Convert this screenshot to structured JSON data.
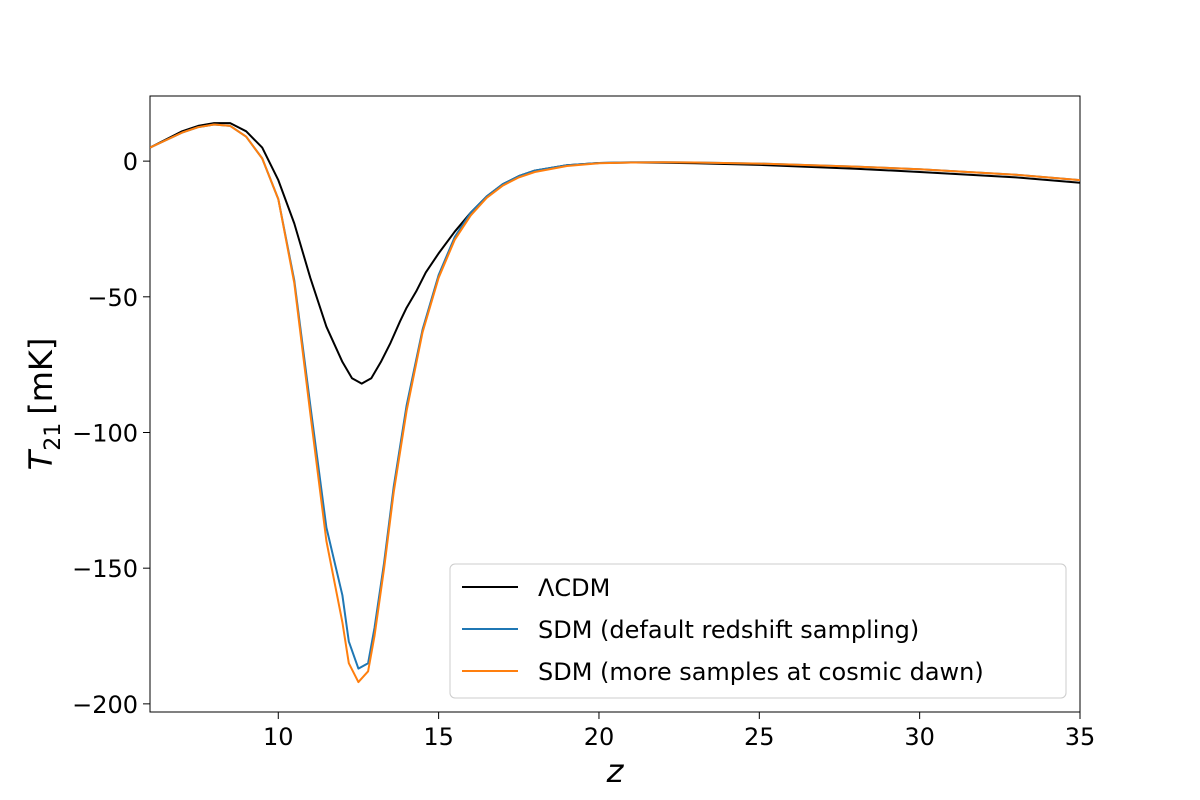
{
  "chart_data": {
    "type": "line",
    "xlabel": "z",
    "ylabel_main": "T",
    "ylabel_sub": "21",
    "ylabel_unit": "[mK]",
    "xlim": [
      6,
      35
    ],
    "ylim": [
      -203,
      24
    ],
    "x_ticks": [
      10,
      15,
      20,
      25,
      30,
      35
    ],
    "y_ticks": [
      0,
      -50,
      -100,
      -150,
      -200
    ],
    "x_tick_labels": [
      "10",
      "15",
      "20",
      "25",
      "30",
      "35"
    ],
    "y_tick_labels": [
      "0",
      "−50",
      "−100",
      "−150",
      "−200"
    ],
    "grid": false,
    "legend_position": "lower-right",
    "series": [
      {
        "name": "ΛCDM",
        "color": "#000000",
        "x": [
          6,
          7,
          7.5,
          8,
          8.5,
          9,
          9.5,
          10,
          10.5,
          11,
          11.5,
          12,
          12.3,
          12.6,
          12.9,
          13.2,
          13.5,
          13.8,
          14,
          14.3,
          14.6,
          15,
          15.5,
          16,
          16.5,
          17,
          17.5,
          18,
          19,
          20,
          21,
          22,
          23,
          25,
          28,
          30,
          33,
          35
        ],
        "y": [
          5,
          11,
          13,
          14,
          14,
          11,
          5,
          -7,
          -23,
          -43,
          -61,
          -74,
          -80,
          -82,
          -80,
          -74,
          -67,
          -59,
          -54,
          -48,
          -41,
          -34,
          -26,
          -19,
          -13,
          -8.5,
          -5.5,
          -3.5,
          -1.5,
          -0.7,
          -0.5,
          -0.6,
          -0.8,
          -1.4,
          -2.8,
          -4,
          -6,
          -8
        ]
      },
      {
        "name": "SDM (default redshift sampling)",
        "color": "#1f77b4",
        "x": [
          6,
          7,
          7.5,
          8,
          8.5,
          9,
          9.5,
          10,
          10.5,
          11,
          11.5,
          12,
          12.2,
          12.5,
          12.8,
          13,
          13.3,
          13.6,
          14,
          14.5,
          15,
          15.5,
          16,
          16.5,
          17,
          17.5,
          18,
          19,
          20,
          21,
          22,
          23,
          25,
          28,
          30,
          33,
          35
        ],
        "y": [
          5,
          10.5,
          12.5,
          13.5,
          13,
          9,
          1,
          -14,
          -44,
          -90,
          -135,
          -160,
          -177,
          -187,
          -185,
          -172,
          -148,
          -120,
          -90,
          -62,
          -42,
          -28,
          -19,
          -13,
          -8.5,
          -5.5,
          -3.5,
          -1.5,
          -0.7,
          -0.4,
          -0.4,
          -0.5,
          -0.9,
          -2,
          -3,
          -5,
          -7
        ]
      },
      {
        "name": "SDM (more samples at cosmic dawn)",
        "color": "#ff7f0e",
        "x": [
          6,
          7,
          7.5,
          8,
          8.5,
          9,
          9.5,
          10,
          10.5,
          11,
          11.5,
          12,
          12.2,
          12.5,
          12.8,
          13,
          13.3,
          13.6,
          14,
          14.5,
          15,
          15.5,
          16,
          16.5,
          17,
          17.5,
          18,
          19,
          20,
          21,
          22,
          23,
          25,
          28,
          30,
          33,
          35
        ],
        "y": [
          5,
          10.5,
          12.5,
          13.5,
          13,
          9,
          1,
          -14,
          -45,
          -93,
          -140,
          -170,
          -185,
          -192,
          -188,
          -175,
          -150,
          -122,
          -92,
          -63,
          -43,
          -29,
          -20,
          -13.5,
          -9,
          -6,
          -4,
          -1.8,
          -0.8,
          -0.5,
          -0.4,
          -0.5,
          -0.9,
          -2,
          -3,
          -5,
          -7
        ]
      }
    ]
  }
}
